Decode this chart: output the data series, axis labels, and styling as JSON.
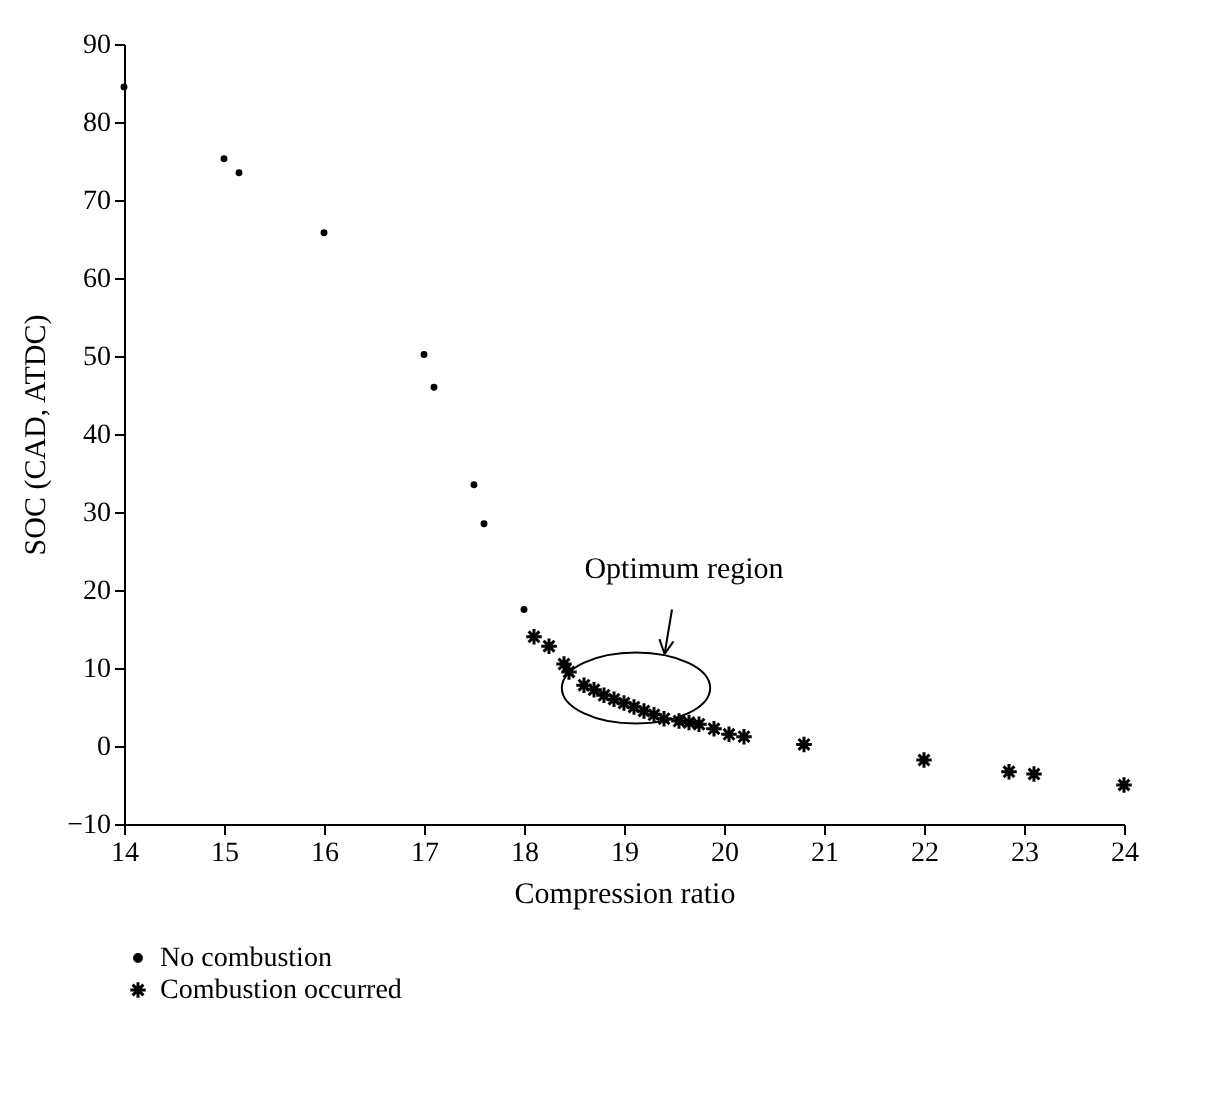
{
  "chart_data": {
    "type": "scatter",
    "xlabel": "Compression ratio",
    "ylabel": "SOC (CAD, ATDC)",
    "xlim": [
      14,
      24
    ],
    "xticks": [
      14,
      15,
      16,
      17,
      18,
      19,
      20,
      21,
      22,
      23,
      24
    ],
    "ylim": [
      -10,
      90
    ],
    "yticks": [
      {
        "value": -10,
        "label": "−10"
      },
      0,
      10,
      20,
      30,
      40,
      50,
      60,
      70,
      80,
      90
    ],
    "grid": false,
    "legend": "bottom",
    "annotations": [
      "Optimum region"
    ],
    "series": [
      {
        "name": "No combustion",
        "color": "#000000",
        "marker": "circle",
        "x": [
          14,
          15,
          15.15,
          16,
          17,
          17.1,
          17.5,
          17.6,
          18
        ],
        "values": [
          84.5,
          75.3,
          73.5,
          65.8,
          50.2,
          46,
          33.5,
          28.5,
          17.5
        ]
      },
      {
        "name": "Combustion occurred",
        "color": "#000000",
        "marker": "cross",
        "x": [
          18.1,
          18.25,
          18.4,
          18.45,
          18.6,
          18.7,
          18.8,
          18.9,
          19.0,
          19.1,
          19.2,
          19.3,
          19.4,
          19.55,
          19.65,
          19.75,
          19.9,
          20.05,
          20.2,
          20.8,
          22,
          22.85,
          23.1,
          24
        ],
        "values": [
          14,
          12.8,
          10.5,
          9.5,
          7.8,
          7.2,
          6.5,
          6,
          5.5,
          5,
          4.5,
          4,
          3.5,
          3.2,
          3,
          2.8,
          2.2,
          1.5,
          1.2,
          0.2,
          -1.8,
          -3.3,
          -3.6,
          -5
        ]
      }
    ]
  }
}
